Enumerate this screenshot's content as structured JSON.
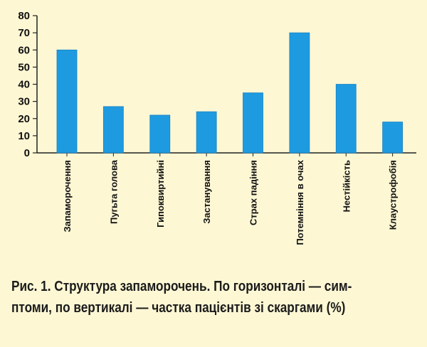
{
  "chart_data": {
    "type": "bar",
    "categories": [
      "Запаморочення",
      "Пугьта голова",
      "Гипоквиртийні",
      "Застанування",
      "Страх падіння",
      "Потемніння в очах",
      "Нестійкість",
      "Клаустрофобія"
    ],
    "values": [
      60,
      27,
      22,
      24,
      35,
      70,
      40,
      18
    ],
    "yticks": [
      0,
      10,
      20,
      30,
      40,
      50,
      60,
      70,
      80
    ],
    "ylim": [
      0,
      80
    ],
    "bar_color": "#1e9be0",
    "background_color": "#fdf7d4",
    "xlabel": "",
    "ylabel": "",
    "grid": false
  },
  "caption": {
    "line1": "Рис. 1. Структура запаморочень. По горизонталі — сим-",
    "line2": "птоми, по вертикалі — частка пацієнтів зі скаргами (%)"
  }
}
